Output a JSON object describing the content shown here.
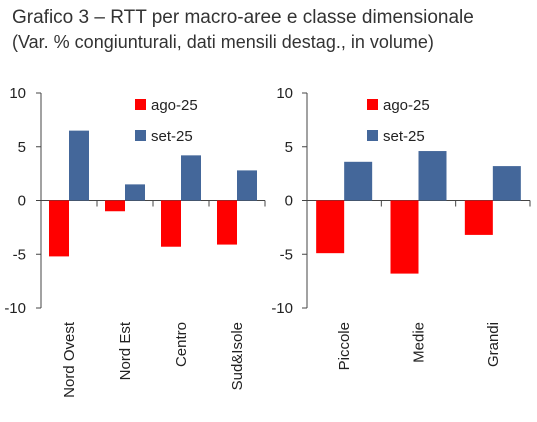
{
  "title": "Grafico 3 – RTT per macro-aree e classe dimensionale",
  "subtitle": "(Var. % congiunturali, dati mensili destag., in volume)",
  "colors": {
    "ago-25": "#ff0000",
    "set-25": "#44679a"
  },
  "chart_data": [
    {
      "type": "bar",
      "categories": [
        "Nord Ovest",
        "Nord Est",
        "Centro",
        "Sud&Isole"
      ],
      "series": [
        {
          "name": "ago-25",
          "values": [
            -5.2,
            -1.0,
            -4.3,
            -4.1
          ]
        },
        {
          "name": "set-25",
          "values": [
            6.5,
            1.5,
            4.2,
            2.8
          ]
        }
      ],
      "ylim": [
        -10,
        10
      ],
      "yticks": [
        "10",
        "5",
        "0",
        "-5",
        "-10"
      ],
      "legend_position": "top-right",
      "grid": false
    },
    {
      "type": "bar",
      "categories": [
        "Piccole",
        "Medie",
        "Grandi"
      ],
      "series": [
        {
          "name": "ago-25",
          "values": [
            -4.9,
            -6.8,
            -3.2
          ]
        },
        {
          "name": "set-25",
          "values": [
            3.6,
            4.6,
            3.2
          ]
        }
      ],
      "ylim": [
        -10,
        10
      ],
      "yticks": [
        "10",
        "5",
        "0",
        "-5",
        "-10"
      ],
      "legend_position": "top-right",
      "grid": false
    }
  ]
}
